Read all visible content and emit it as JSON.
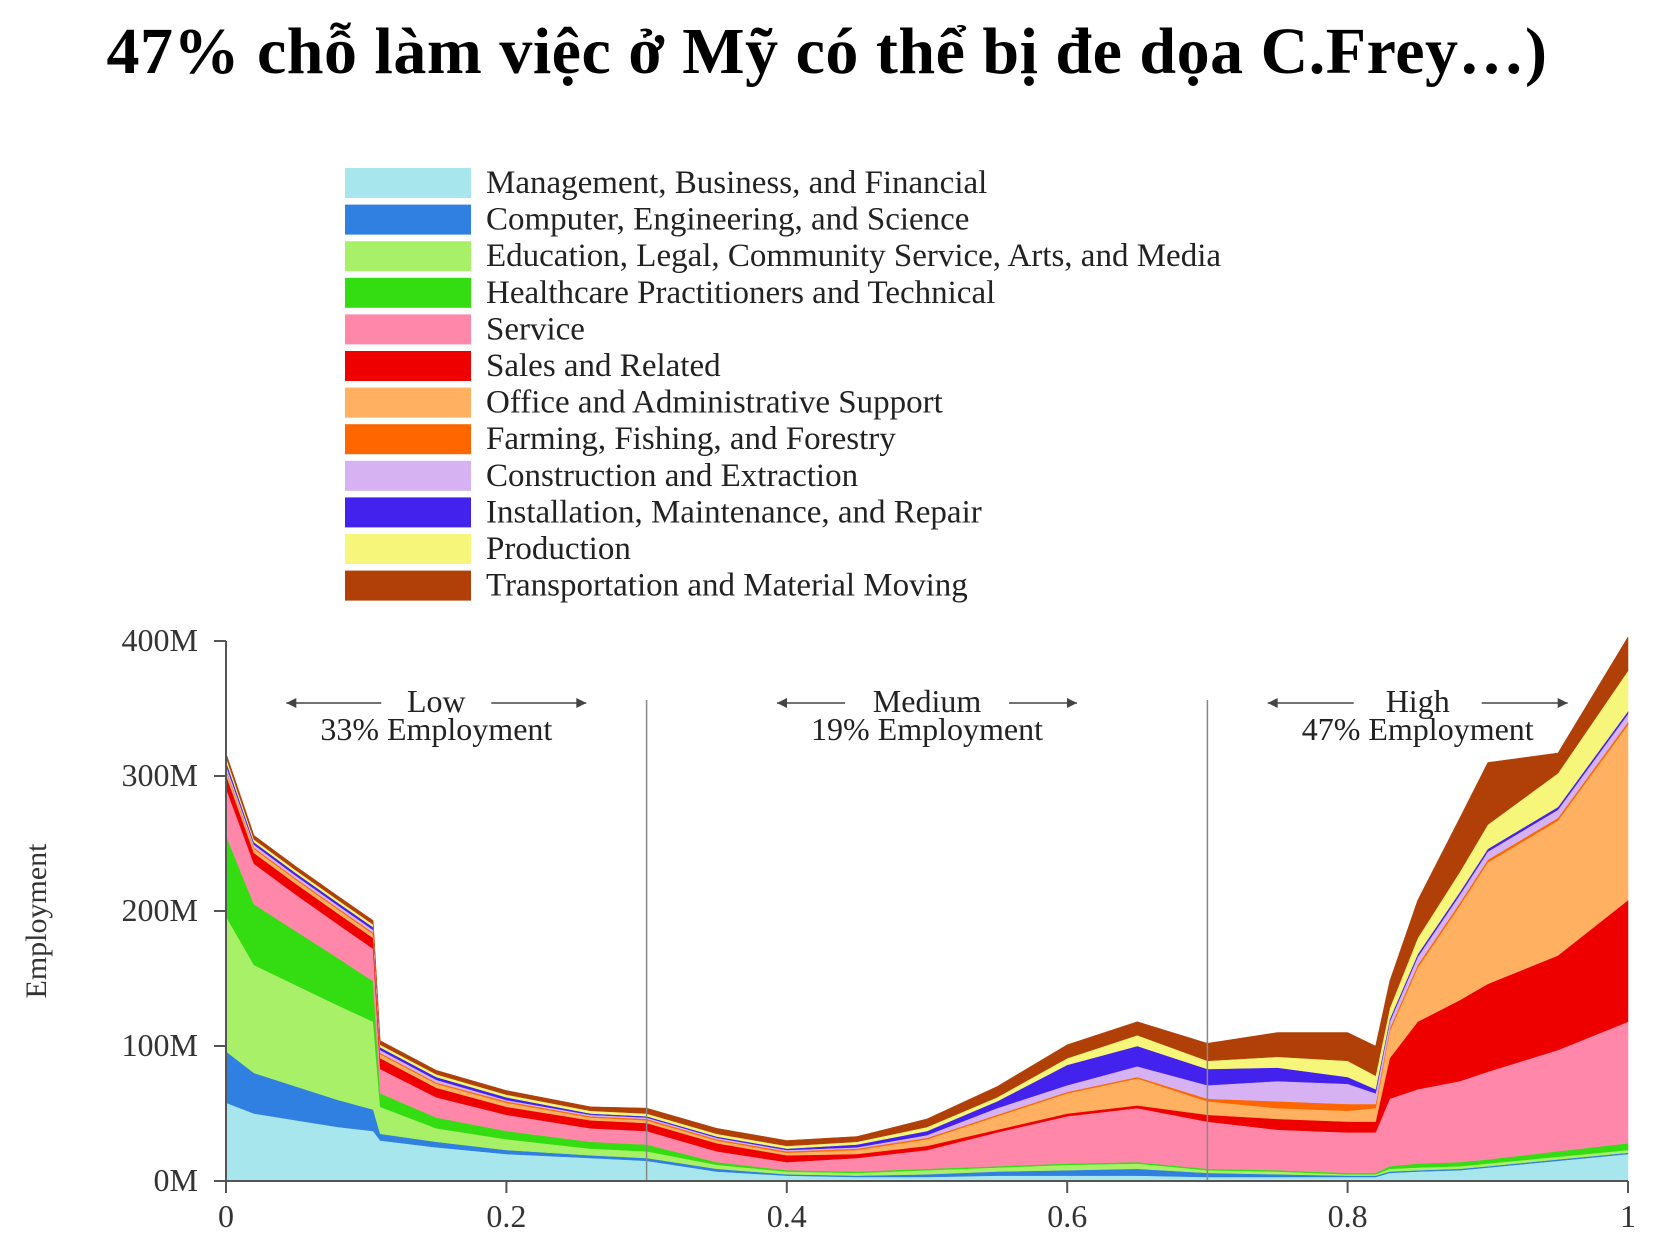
{
  "title": "47% chỗ làm việc ở Mỹ có thể bị đe dọa C.Frey…)",
  "chart_data": {
    "type": "area",
    "stacked": true,
    "xlabel": "",
    "ylabel": "Employment",
    "xlim": [
      0,
      1
    ],
    "ylim": [
      0,
      400
    ],
    "x_ticks": [
      "0",
      "0.2",
      "0.4",
      "0.6",
      "0.8",
      "1"
    ],
    "y_ticks": [
      "0M",
      "100M",
      "200M",
      "300M",
      "400M"
    ],
    "legend_position": "top",
    "regions": [
      {
        "name": "Low",
        "label": "33% Employment",
        "x_range": [
          0,
          0.3
        ]
      },
      {
        "name": "Medium",
        "label": "19% Employment",
        "x_range": [
          0.3,
          0.7
        ]
      },
      {
        "name": "High",
        "label": "47% Employment",
        "x_range": [
          0.7,
          1
        ]
      }
    ],
    "region_dividers": [
      0.3,
      0.7
    ],
    "x": [
      0,
      0.02,
      0.05,
      0.08,
      0.105,
      0.11,
      0.15,
      0.2,
      0.26,
      0.3,
      0.35,
      0.4,
      0.45,
      0.5,
      0.55,
      0.6,
      0.65,
      0.7,
      0.75,
      0.8,
      0.82,
      0.83,
      0.85,
      0.88,
      0.9,
      0.95,
      1.0
    ],
    "series": [
      {
        "name": "Management, Business, and Financial",
        "color": "#A8E6EE",
        "values": [
          58,
          50,
          45,
          40,
          37,
          30,
          25,
          20,
          17,
          15,
          7,
          4,
          3,
          3,
          4,
          4,
          4,
          3,
          3,
          3,
          3,
          6,
          7,
          8,
          10,
          15,
          20
        ]
      },
      {
        "name": "Computer, Engineering, and Science",
        "color": "#2F80E0",
        "values": [
          38,
          30,
          25,
          20,
          16,
          5,
          4,
          3,
          2,
          2,
          2,
          1,
          1,
          2,
          3,
          4,
          5,
          3,
          2,
          1,
          1,
          1,
          1,
          1,
          1,
          1,
          1
        ]
      },
      {
        "name": "Education, Legal, Community Service, Arts, and Media",
        "color": "#A8F068",
        "values": [
          100,
          80,
          75,
          70,
          65,
          20,
          10,
          8,
          5,
          5,
          3,
          2,
          2,
          3,
          3,
          4,
          4,
          2,
          2,
          1,
          1,
          2,
          2,
          2,
          2,
          2,
          2
        ]
      },
      {
        "name": "Healthcare Practitioners and Technical",
        "color": "#33DD11",
        "values": [
          60,
          45,
          40,
          35,
          30,
          10,
          8,
          6,
          5,
          5,
          2,
          1,
          1,
          1,
          1,
          1,
          1,
          1,
          1,
          1,
          1,
          2,
          3,
          3,
          3,
          4,
          5
        ]
      },
      {
        "name": "Service",
        "color": "#FF88AA",
        "values": [
          35,
          30,
          27,
          25,
          24,
          18,
          15,
          12,
          10,
          10,
          8,
          6,
          10,
          14,
          25,
          35,
          40,
          35,
          30,
          30,
          30,
          50,
          55,
          60,
          65,
          75,
          90
        ]
      },
      {
        "name": "Sales and Related",
        "color": "#EE0000",
        "values": [
          10,
          8,
          8,
          8,
          8,
          8,
          7,
          6,
          6,
          6,
          6,
          5,
          3,
          3,
          2,
          2,
          2,
          5,
          8,
          8,
          8,
          30,
          50,
          60,
          65,
          70,
          90
        ]
      },
      {
        "name": "Office and Administrative Support",
        "color": "#FFB060",
        "values": [
          3,
          3,
          3,
          3,
          3,
          3,
          3,
          3,
          2,
          2,
          2,
          2,
          3,
          5,
          10,
          15,
          20,
          10,
          8,
          8,
          10,
          20,
          40,
          70,
          90,
          100,
          130
        ]
      },
      {
        "name": "Farming, Fishing, and Forestry",
        "color": "#FF6600",
        "values": [
          1,
          1,
          1,
          1,
          1,
          1,
          1,
          1,
          1,
          1,
          1,
          1,
          1,
          1,
          1,
          1,
          1,
          2,
          5,
          5,
          3,
          2,
          2,
          2,
          2,
          2,
          2
        ]
      },
      {
        "name": "Construction and Extraction",
        "color": "#D6B2F2",
        "values": [
          3,
          2,
          2,
          2,
          2,
          2,
          2,
          1,
          1,
          1,
          1,
          1,
          1,
          2,
          5,
          5,
          8,
          10,
          15,
          15,
          8,
          5,
          6,
          6,
          6,
          6,
          6
        ]
      },
      {
        "name": "Installation, Maintenance, and Repair",
        "color": "#4422EE",
        "values": [
          3,
          2,
          2,
          2,
          2,
          2,
          2,
          2,
          1,
          1,
          1,
          1,
          2,
          3,
          5,
          15,
          15,
          12,
          10,
          5,
          3,
          2,
          2,
          2,
          2,
          2,
          2
        ]
      },
      {
        "name": "Production",
        "color": "#F6F67A",
        "values": [
          3,
          2,
          2,
          2,
          2,
          2,
          2,
          2,
          2,
          2,
          2,
          2,
          2,
          3,
          3,
          5,
          8,
          6,
          8,
          12,
          10,
          8,
          12,
          15,
          18,
          25,
          30
        ]
      },
      {
        "name": "Transportation and Material Moving",
        "color": "#B04008",
        "values": [
          3,
          3,
          3,
          3,
          3,
          3,
          3,
          3,
          3,
          4,
          4,
          4,
          4,
          6,
          8,
          10,
          10,
          13,
          18,
          21,
          22,
          20,
          28,
          40,
          46,
          15,
          25
        ]
      }
    ]
  }
}
